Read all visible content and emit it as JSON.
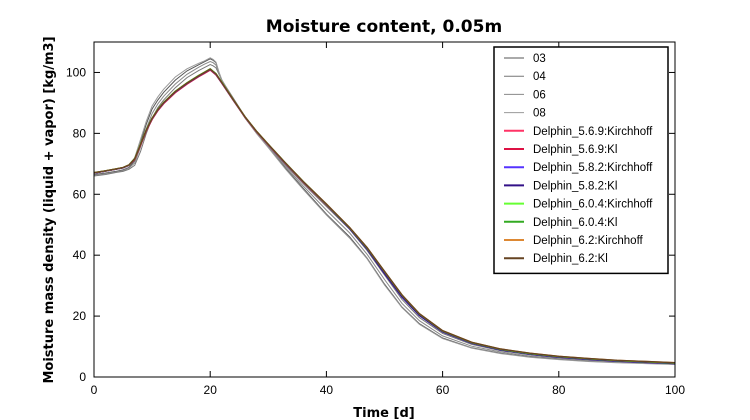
{
  "chart_data": {
    "type": "line",
    "title": "Moisture content, 0.05m",
    "xlabel": "Time [d]",
    "ylabel": "Moisture mass density (liquid + vapor) [kg/m3]",
    "xlim": [
      0,
      100
    ],
    "ylim": [
      0,
      110
    ],
    "xticks": [
      "0",
      "20",
      "40",
      "60",
      "80",
      "100"
    ],
    "yticks": [
      "0",
      "20",
      "40",
      "60",
      "80",
      "100"
    ],
    "grid": false,
    "legend_position": "top-right",
    "series": [
      {
        "name": "03",
        "color": "#555555",
        "x": [
          0,
          2,
          4,
          5,
          6,
          7,
          8,
          9,
          10,
          11,
          12,
          14,
          16,
          18,
          19,
          20,
          20.5,
          21,
          21.5,
          22,
          24,
          26,
          28,
          30,
          33,
          36,
          40,
          44,
          47,
          50,
          53,
          56,
          60,
          65,
          70,
          75,
          80,
          85,
          90,
          95,
          100
        ],
        "y": [
          66.5,
          67.0,
          67.6,
          68.0,
          68.8,
          71,
          77,
          83,
          88,
          91,
          93.5,
          97.5,
          100.5,
          102.5,
          103.5,
          104.5,
          104,
          103.2,
          100,
          97.5,
          91,
          85,
          80,
          75.5,
          68.5,
          62,
          53.5,
          46,
          39,
          30.5,
          23,
          17.5,
          12.8,
          9.6,
          7.8,
          6.6,
          5.8,
          5.2,
          4.8,
          4.5,
          4.2
        ]
      },
      {
        "name": "04",
        "color": "#777777",
        "x": [
          0,
          2,
          4,
          5,
          6,
          7,
          8,
          9,
          10,
          11,
          12,
          14,
          16,
          18,
          19,
          20,
          20.5,
          21,
          21.5,
          22,
          24,
          26,
          28,
          30,
          33,
          36,
          40,
          44,
          47,
          50,
          53,
          56,
          60,
          65,
          70,
          75,
          80,
          85,
          90,
          95,
          100
        ],
        "y": [
          66.0,
          66.5,
          67.2,
          67.5,
          68.2,
          69.5,
          74,
          80,
          85,
          88.5,
          91,
          95,
          98.3,
          100.6,
          101.6,
          102.6,
          102.2,
          101.5,
          99.5,
          97.5,
          91.5,
          85.5,
          80.3,
          75.8,
          69.5,
          63.5,
          56,
          48.5,
          41.5,
          33.5,
          25.5,
          19.5,
          14.3,
          10.7,
          8.6,
          7.3,
          6.3,
          5.6,
          5.1,
          4.7,
          4.4
        ]
      },
      {
        "name": "06",
        "color": "#888888",
        "x": [
          0,
          2,
          4,
          5,
          6,
          7,
          8,
          9,
          10,
          11,
          12,
          14,
          16,
          18,
          19,
          20,
          20.5,
          21,
          21.5,
          22,
          24,
          26,
          28,
          30,
          33,
          36,
          40,
          44,
          47,
          50,
          53,
          56,
          60,
          65,
          70,
          75,
          80,
          85,
          90,
          95,
          100
        ],
        "y": [
          66.3,
          66.8,
          67.4,
          67.8,
          68.6,
          70.3,
          75.5,
          81.5,
          86.5,
          89.7,
          92.2,
          96.2,
          99.4,
          101.7,
          102.7,
          103.6,
          103.2,
          102.4,
          99.8,
          97.5,
          91.2,
          85.2,
          80.1,
          75.6,
          69,
          62.7,
          54.8,
          47.3,
          40.3,
          32,
          24.2,
          18.5,
          13.5,
          10.1,
          8.2,
          6.9,
          6.1,
          5.4,
          4.9,
          4.6,
          4.3
        ]
      },
      {
        "name": "08",
        "color": "#999999",
        "x": [
          0,
          2,
          4,
          5,
          6,
          7,
          8,
          9,
          10,
          11,
          12,
          14,
          16,
          18,
          19,
          20,
          20.5,
          21,
          21.5,
          22,
          24,
          26,
          28,
          30,
          33,
          36,
          40,
          44,
          47,
          50,
          53,
          56,
          60,
          65,
          70,
          75,
          80,
          85,
          90,
          95,
          100
        ],
        "y": [
          67.2,
          67.7,
          68.3,
          68.7,
          69.5,
          72,
          78,
          84,
          89,
          92,
          94.5,
          98.5,
          101.2,
          103,
          103.8,
          104.8,
          104.3,
          103.4,
          100.2,
          97.6,
          91,
          85,
          79.9,
          75.3,
          68.2,
          61.6,
          53.2,
          45.6,
          38.8,
          30.2,
          22.8,
          17.3,
          12.6,
          9.5,
          7.7,
          6.5,
          5.7,
          5.1,
          4.7,
          4.4,
          4.1
        ]
      },
      {
        "name": "Delphin_5.6.9:Kirchhoff",
        "color": "#ff3366",
        "x": [
          0,
          2,
          4,
          5,
          6,
          7,
          8,
          9,
          10,
          11,
          12,
          14,
          16,
          18,
          19,
          20,
          21,
          22,
          24,
          26,
          28,
          30,
          33,
          36,
          40,
          44,
          47,
          50,
          53,
          56,
          60,
          65,
          70,
          75,
          80,
          85,
          90,
          95,
          100
        ],
        "y": [
          67.0,
          67.6,
          68.3,
          68.7,
          69.5,
          71.5,
          76,
          80.8,
          84.6,
          87.5,
          89.8,
          93.4,
          96.2,
          98.6,
          99.7,
          100.8,
          99.2,
          96.5,
          90.8,
          85.2,
          80.4,
          76.2,
          70,
          64,
          56.5,
          48.8,
          42.2,
          34.4,
          26.7,
          20.5,
          15,
          11.2,
          9,
          7.6,
          6.6,
          5.9,
          5.3,
          4.9,
          4.5
        ]
      },
      {
        "name": "Delphin_5.6.9:Kl",
        "color": "#dd1144",
        "x": [
          0,
          2,
          4,
          5,
          6,
          7,
          8,
          9,
          10,
          11,
          12,
          14,
          16,
          18,
          19,
          20,
          21,
          22,
          24,
          26,
          28,
          30,
          33,
          36,
          40,
          44,
          47,
          50,
          53,
          56,
          60,
          65,
          70,
          75,
          80,
          85,
          90,
          95,
          100
        ],
        "y": [
          67.0,
          67.6,
          68.3,
          68.7,
          69.5,
          71.5,
          76,
          80.8,
          84.6,
          87.5,
          89.8,
          93.4,
          96.2,
          98.6,
          99.7,
          100.8,
          99.2,
          96.5,
          90.8,
          85.2,
          80.4,
          76.2,
          70,
          64,
          56.5,
          48.8,
          42.2,
          34.4,
          26.7,
          20.5,
          15,
          11.2,
          9,
          7.6,
          6.6,
          5.9,
          5.3,
          4.9,
          4.5
        ]
      },
      {
        "name": "Delphin_5.8.2:Kirchhoff",
        "color": "#5533ff",
        "x": [
          0,
          2,
          4,
          5,
          6,
          7,
          8,
          9,
          10,
          11,
          12,
          14,
          16,
          18,
          19,
          20,
          21,
          22,
          24,
          26,
          28,
          30,
          33,
          36,
          40,
          44,
          47,
          50,
          53,
          56,
          60,
          65,
          70,
          75,
          80,
          85,
          90,
          95,
          100
        ],
        "y": [
          67.0,
          67.6,
          68.3,
          68.7,
          69.5,
          71.6,
          76.2,
          81,
          84.8,
          87.7,
          90,
          93.6,
          96.4,
          98.8,
          99.9,
          101,
          99.4,
          96.6,
          90.9,
          85.3,
          80.5,
          76.3,
          70.1,
          64.1,
          56.6,
          48.7,
          42,
          34,
          26.3,
          20.2,
          14.8,
          11.1,
          8.9,
          7.5,
          6.5,
          5.8,
          5.2,
          4.8,
          4.4
        ]
      },
      {
        "name": "Delphin_5.8.2:Kl",
        "color": "#331188",
        "x": [
          0,
          2,
          4,
          5,
          6,
          7,
          8,
          9,
          10,
          11,
          12,
          14,
          16,
          18,
          19,
          20,
          21,
          22,
          24,
          26,
          28,
          30,
          33,
          36,
          40,
          44,
          47,
          50,
          53,
          56,
          60,
          65,
          70,
          75,
          80,
          85,
          90,
          95,
          100
        ],
        "y": [
          67.0,
          67.6,
          68.3,
          68.7,
          69.5,
          71.6,
          76.2,
          81,
          84.8,
          87.7,
          90,
          93.6,
          96.4,
          98.8,
          99.9,
          101,
          99.4,
          96.6,
          90.9,
          85.3,
          80.5,
          76.3,
          70.1,
          64.1,
          56.6,
          48.7,
          42,
          34,
          26.3,
          20.2,
          14.8,
          11.1,
          8.9,
          7.5,
          6.5,
          5.8,
          5.2,
          4.8,
          4.4
        ]
      },
      {
        "name": "Delphin_6.0.4:Kirchhoff",
        "color": "#66ff33",
        "x": [
          0,
          2,
          4,
          5,
          6,
          7,
          8,
          9,
          10,
          11,
          12,
          14,
          16,
          18,
          19,
          20,
          21,
          22,
          24,
          26,
          28,
          30,
          33,
          36,
          40,
          44,
          47,
          50,
          53,
          56,
          60,
          65,
          70,
          75,
          80,
          85,
          90,
          95,
          100
        ],
        "y": [
          67.1,
          67.7,
          68.4,
          68.8,
          69.6,
          71.7,
          76.4,
          81.2,
          85,
          87.9,
          90.2,
          93.8,
          96.6,
          99,
          100.1,
          101.2,
          99.6,
          96.8,
          91,
          85.4,
          80.6,
          76.4,
          70.2,
          64.2,
          56.7,
          49,
          42.4,
          34.6,
          26.9,
          20.7,
          15.1,
          11.3,
          9.1,
          7.7,
          6.7,
          6,
          5.4,
          5,
          4.6
        ]
      },
      {
        "name": "Delphin_6.0.4:Kl",
        "color": "#33aa22",
        "x": [
          0,
          2,
          4,
          5,
          6,
          7,
          8,
          9,
          10,
          11,
          12,
          14,
          16,
          18,
          19,
          20,
          21,
          22,
          24,
          26,
          28,
          30,
          33,
          36,
          40,
          44,
          47,
          50,
          53,
          56,
          60,
          65,
          70,
          75,
          80,
          85,
          90,
          95,
          100
        ],
        "y": [
          67.1,
          67.7,
          68.4,
          68.8,
          69.6,
          71.7,
          76.4,
          81.2,
          85,
          87.9,
          90.2,
          93.8,
          96.6,
          99,
          100.1,
          101.2,
          99.6,
          96.8,
          91,
          85.4,
          80.6,
          76.4,
          70.2,
          64.2,
          56.7,
          49,
          42.4,
          34.6,
          26.9,
          20.7,
          15.1,
          11.3,
          9.1,
          7.7,
          6.7,
          6,
          5.4,
          5,
          4.6
        ]
      },
      {
        "name": "Delphin_6.2:Kirchhoff",
        "color": "#dd8833",
        "x": [
          0,
          2,
          4,
          5,
          6,
          7,
          8,
          9,
          10,
          11,
          12,
          14,
          16,
          18,
          19,
          20,
          21,
          22,
          24,
          26,
          28,
          30,
          33,
          36,
          40,
          44,
          47,
          50,
          53,
          56,
          60,
          65,
          70,
          75,
          80,
          85,
          90,
          95,
          100
        ],
        "y": [
          67.1,
          67.7,
          68.4,
          68.8,
          69.6,
          71.6,
          76.3,
          81.1,
          84.9,
          87.8,
          90.1,
          93.7,
          96.5,
          98.9,
          100,
          101.1,
          99.5,
          96.7,
          91,
          85.4,
          80.6,
          76.4,
          70.2,
          64.2,
          56.8,
          49.1,
          42.5,
          34.7,
          27,
          20.8,
          15.2,
          11.4,
          9.2,
          7.8,
          6.8,
          6.1,
          5.5,
          5.1,
          4.7
        ]
      },
      {
        "name": "Delphin_6.2:Kl",
        "color": "#664422",
        "x": [
          0,
          2,
          4,
          5,
          6,
          7,
          8,
          9,
          10,
          11,
          12,
          14,
          16,
          18,
          19,
          20,
          21,
          22,
          24,
          26,
          28,
          30,
          33,
          36,
          40,
          44,
          47,
          50,
          53,
          56,
          60,
          65,
          70,
          75,
          80,
          85,
          90,
          95,
          100
        ],
        "y": [
          67.1,
          67.7,
          68.4,
          68.8,
          69.6,
          71.6,
          76.3,
          81.1,
          84.9,
          87.8,
          90.1,
          93.7,
          96.5,
          98.9,
          100,
          101.1,
          99.5,
          96.7,
          91,
          85.4,
          80.6,
          76.4,
          70.2,
          64.2,
          56.8,
          49.1,
          42.5,
          34.7,
          27,
          20.8,
          15.2,
          11.4,
          9.2,
          7.8,
          6.8,
          6.1,
          5.5,
          5.1,
          4.7
        ]
      }
    ]
  }
}
